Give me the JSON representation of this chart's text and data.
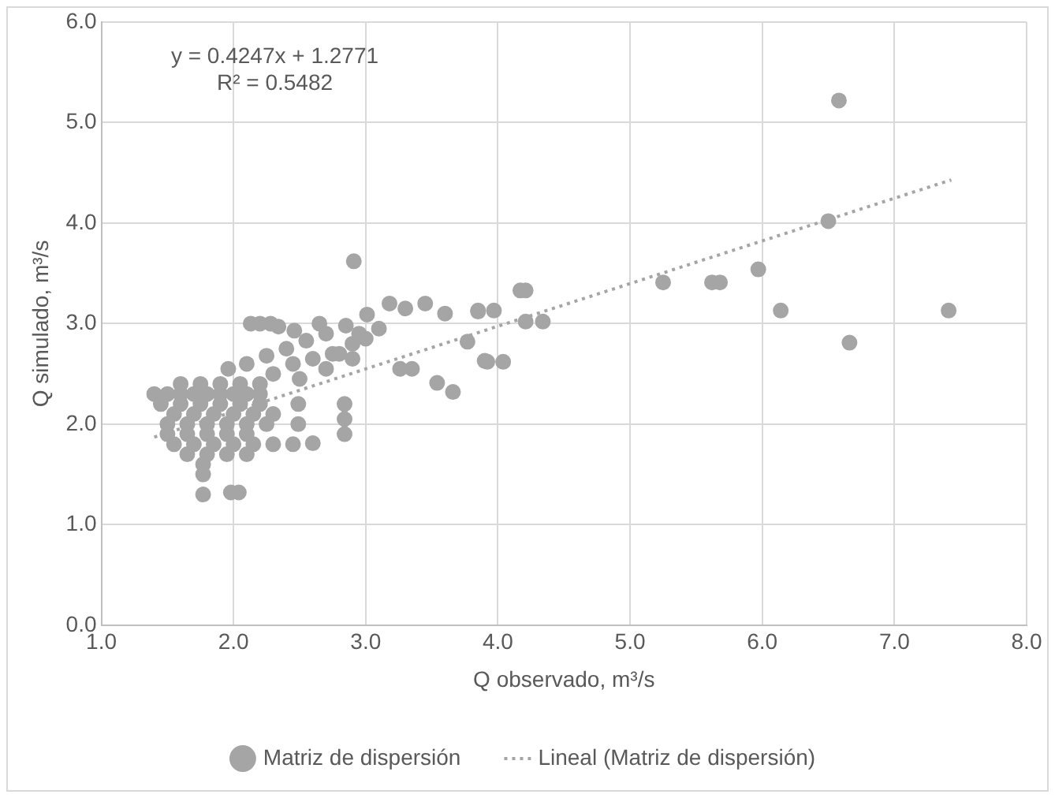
{
  "chart_data": {
    "type": "scatter",
    "xlabel": "Q observado, m³/s",
    "ylabel": "Q simulado, m³/s",
    "xlim": [
      1,
      8
    ],
    "xticks": [
      {
        "value": 1,
        "label": "1.0"
      },
      {
        "value": 2,
        "label": "2.0"
      },
      {
        "value": 3,
        "label": "3.0"
      },
      {
        "value": 4,
        "label": "4.0"
      },
      {
        "value": 5,
        "label": "5.0"
      },
      {
        "value": 6,
        "label": "6.0"
      },
      {
        "value": 7,
        "label": "7.0"
      },
      {
        "value": 8,
        "label": "8.0"
      }
    ],
    "ylim": [
      0,
      6
    ],
    "yticks": [
      {
        "value": 0,
        "label": "0.0"
      },
      {
        "value": 1,
        "label": "1.0"
      },
      {
        "value": 2,
        "label": "2.0"
      },
      {
        "value": 3,
        "label": "3.0"
      },
      {
        "value": 4,
        "label": "4.0"
      },
      {
        "value": 5,
        "label": "5.0"
      },
      {
        "value": 6,
        "label": "6.0"
      }
    ],
    "grid": true,
    "legend": "bottom",
    "marker": "circle",
    "annotations": [
      "y = 0.4247x + 1.2771",
      "R² = 0.5482"
    ],
    "series": [
      {
        "name": "Matriz de dispersión",
        "color": "#a5a5a5",
        "x": [
          1.4,
          1.5,
          1.6,
          1.7,
          1.8,
          1.9,
          2.0,
          2.1,
          2.2,
          1.45,
          1.6,
          1.75,
          1.9,
          2.05,
          2.2,
          1.55,
          1.7,
          1.85,
          2.0,
          2.15,
          2.3,
          1.5,
          1.65,
          1.8,
          1.95,
          2.1,
          2.25,
          1.5,
          1.65,
          1.8,
          1.95,
          2.1,
          1.55,
          1.7,
          1.85,
          2.0,
          2.15,
          2.3,
          2.45,
          2.6,
          1.65,
          1.8,
          1.95,
          2.1,
          1.77,
          1.77,
          1.77,
          1.98,
          2.04,
          1.6,
          1.75,
          1.9,
          2.05,
          2.2,
          2.84,
          2.84,
          2.84,
          2.49,
          2.49,
          2.13,
          2.2,
          2.28,
          2.34,
          2.46,
          2.65,
          1.96,
          2.1,
          2.25,
          2.4,
          2.55,
          2.7,
          2.85,
          3.01,
          2.3,
          2.45,
          2.6,
          2.75,
          2.9,
          2.5,
          2.7,
          2.9,
          3.0,
          2.8,
          2.95,
          3.1,
          3.18,
          3.3,
          3.45,
          3.6,
          3.26,
          3.35,
          3.54,
          3.66,
          3.77,
          3.85,
          3.9,
          2.91,
          3.85,
          3.97,
          4.17,
          4.21,
          4.21,
          4.34,
          3.92,
          4.04,
          5.25,
          5.62,
          5.68,
          5.97,
          6.14,
          6.66,
          7.41,
          6.5,
          6.58
        ],
        "values": [
          2.3,
          2.3,
          2.3,
          2.3,
          2.3,
          2.3,
          2.3,
          2.3,
          2.3,
          2.2,
          2.2,
          2.2,
          2.2,
          2.2,
          2.2,
          2.1,
          2.1,
          2.1,
          2.1,
          2.1,
          2.1,
          2.0,
          2.0,
          2.0,
          2.0,
          2.0,
          2.0,
          1.9,
          1.9,
          1.9,
          1.9,
          1.9,
          1.8,
          1.8,
          1.8,
          1.8,
          1.8,
          1.8,
          1.8,
          1.81,
          1.7,
          1.7,
          1.7,
          1.7,
          1.6,
          1.5,
          1.3,
          1.32,
          1.32,
          2.4,
          2.4,
          2.4,
          2.4,
          2.4,
          2.2,
          2.05,
          1.9,
          2.2,
          2.0,
          3.0,
          3.0,
          3.0,
          2.97,
          2.93,
          3.0,
          2.55,
          2.6,
          2.68,
          2.75,
          2.83,
          2.9,
          2.98,
          3.09,
          2.5,
          2.6,
          2.65,
          2.7,
          2.8,
          2.45,
          2.55,
          2.65,
          2.85,
          2.7,
          2.9,
          2.95,
          3.2,
          3.15,
          3.2,
          3.1,
          2.55,
          2.55,
          2.41,
          2.32,
          2.82,
          3.12,
          2.63,
          3.62,
          3.13,
          3.13,
          3.33,
          3.33,
          3.02,
          3.02,
          2.62,
          2.62,
          3.41,
          3.41,
          3.41,
          3.54,
          3.13,
          2.81,
          3.13,
          4.02,
          5.22
        ]
      },
      {
        "name": "Lineal (Matriz de dispersión)",
        "type": "line",
        "color": "#a5a5a5",
        "line_style": "dotted",
        "marker": "none",
        "x": [
          1.4,
          7.43
        ],
        "values": [
          1.87,
          4.43
        ]
      }
    ]
  }
}
